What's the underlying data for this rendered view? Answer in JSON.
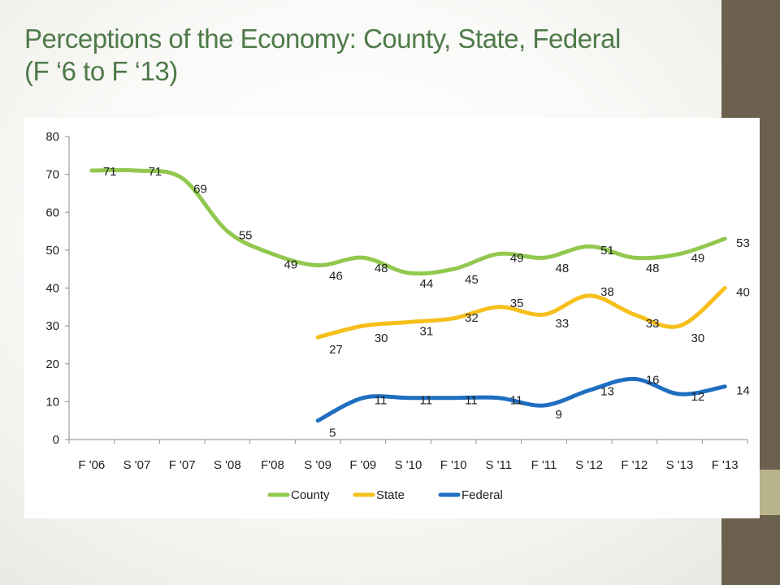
{
  "slide": {
    "title_line1": "Perceptions of the Economy: County, State, Federal",
    "title_line2": "(F ‘6 to F ‘13)",
    "accent_color": "#6c614f",
    "accent2_color": "#b8b38a",
    "title_color": "#4f7a4a"
  },
  "chart_data": {
    "type": "line",
    "categories": [
      "F '06",
      "S '07",
      "F '07",
      "S '08",
      "F'08",
      "S '09",
      "F '09",
      "S '10",
      "F '10",
      "S '11",
      "F '11",
      "S '12",
      "F '12",
      "S '13",
      "F '13"
    ],
    "series": [
      {
        "name": "County",
        "color": "#92c84f",
        "values": [
          71,
          71,
          69,
          55,
          49,
          46,
          48,
          44,
          45,
          49,
          48,
          51,
          48,
          49,
          53
        ],
        "labels": [
          "71",
          "71",
          "69",
          "55",
          "49",
          "46",
          "48",
          "44",
          "45",
          "49",
          "48",
          "51",
          "48",
          "49",
          "53"
        ]
      },
      {
        "name": "State",
        "color": "#f6bf1b",
        "values": [
          null,
          null,
          null,
          null,
          null,
          27,
          30,
          31,
          32,
          35,
          33,
          38,
          33,
          30,
          40
        ],
        "labels": [
          null,
          null,
          null,
          null,
          null,
          "27",
          "30",
          "31",
          "32",
          "35",
          "33",
          "38",
          "33",
          "30",
          "40"
        ]
      },
      {
        "name": "Federal",
        "color": "#1f6fc1",
        "values": [
          null,
          null,
          null,
          null,
          null,
          5,
          11,
          11,
          11,
          11,
          9,
          13,
          16,
          12,
          14
        ],
        "labels": [
          null,
          null,
          null,
          null,
          null,
          "5",
          "11",
          "11",
          "11",
          "11",
          "9",
          "13",
          "16",
          "12",
          "14"
        ]
      }
    ],
    "y_ticks": [
      "0",
      "10",
      "20",
      "30",
      "40",
      "50",
      "60",
      "70",
      "80"
    ],
    "ylim": [
      0,
      80
    ],
    "grid": false,
    "legend_position": "bottom"
  }
}
